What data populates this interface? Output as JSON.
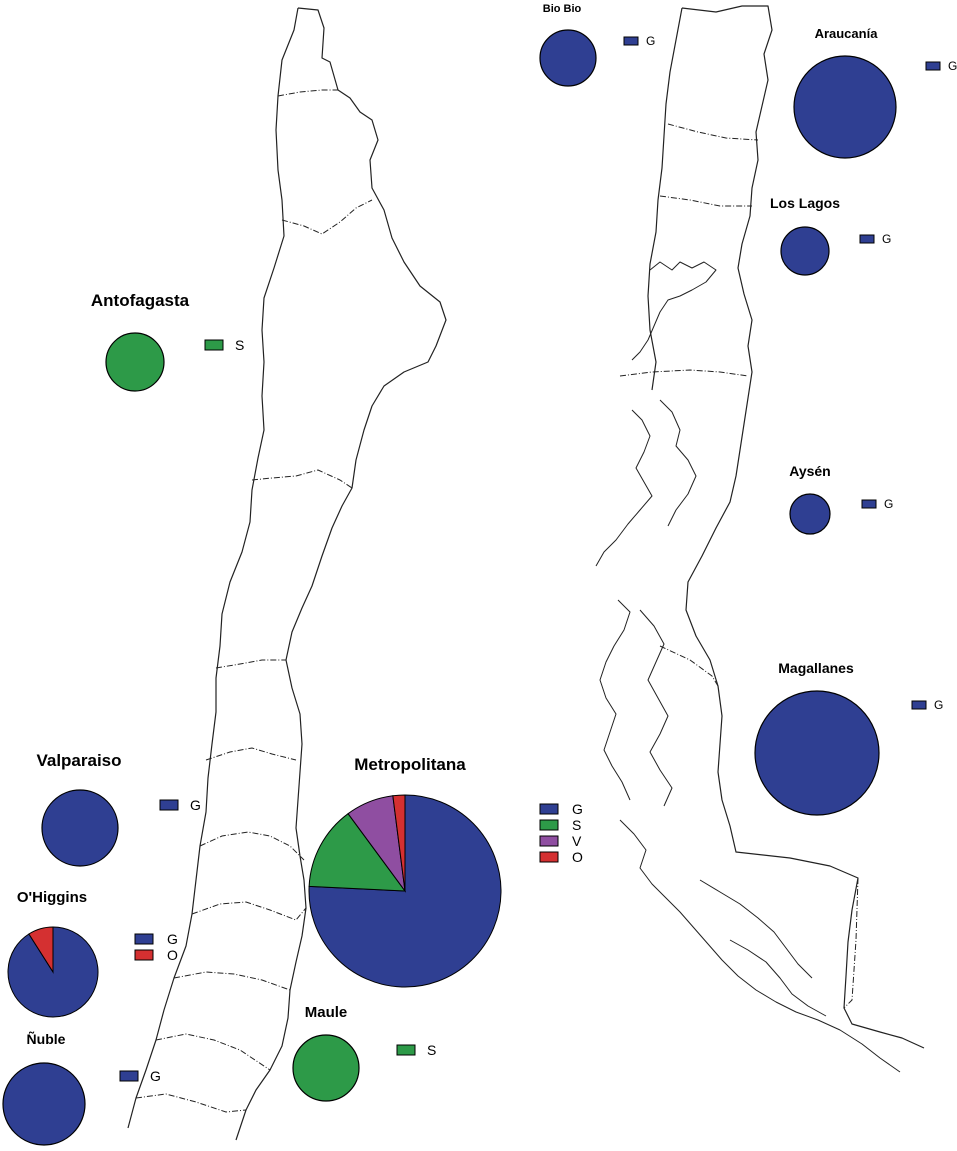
{
  "colors": {
    "G": "#2f3f92",
    "S": "#2d9a48",
    "V": "#8f4ea1",
    "O": "#d43031",
    "outline": "#000000",
    "border": "#222222"
  },
  "category_keys": [
    "G",
    "S",
    "V",
    "O"
  ],
  "regions": [
    {
      "id": "antofagasta",
      "name": "Antofagasta",
      "slices": [
        {
          "cat": "S",
          "value": 1.0
        }
      ],
      "legend": [
        "S"
      ]
    },
    {
      "id": "valparaiso",
      "name": "Valparaiso",
      "slices": [
        {
          "cat": "G",
          "value": 1.0
        }
      ],
      "legend": [
        "G"
      ]
    },
    {
      "id": "ohiggins",
      "name": "O'Higgins",
      "slices": [
        {
          "cat": "G",
          "value": 0.91
        },
        {
          "cat": "O",
          "value": 0.09
        }
      ],
      "legend": [
        "G",
        "O"
      ]
    },
    {
      "id": "nuble",
      "name": "Ñuble",
      "slices": [
        {
          "cat": "G",
          "value": 1.0
        }
      ],
      "legend": [
        "G"
      ]
    },
    {
      "id": "metropolitana",
      "name": "Metropolitana",
      "slices": [
        {
          "cat": "G",
          "value": 0.75
        },
        {
          "cat": "S",
          "value": 0.14
        },
        {
          "cat": "V",
          "value": 0.08
        },
        {
          "cat": "O",
          "value": 0.02
        }
      ],
      "legend": [
        "G",
        "S",
        "V",
        "O"
      ]
    },
    {
      "id": "maule",
      "name": "Maule",
      "slices": [
        {
          "cat": "S",
          "value": 1.0
        }
      ],
      "legend": [
        "S"
      ]
    },
    {
      "id": "biobio",
      "name": "Bio Bio",
      "slices": [
        {
          "cat": "G",
          "value": 1.0
        }
      ],
      "legend": [
        "G"
      ]
    },
    {
      "id": "araucania",
      "name": "Araucanía",
      "slices": [
        {
          "cat": "G",
          "value": 1.0
        }
      ],
      "legend": [
        "G"
      ]
    },
    {
      "id": "loslagos",
      "name": "Los Lagos",
      "slices": [
        {
          "cat": "G",
          "value": 1.0
        }
      ],
      "legend": [
        "G"
      ]
    },
    {
      "id": "aysen",
      "name": "Aysén",
      "slices": [
        {
          "cat": "G",
          "value": 1.0
        }
      ],
      "legend": [
        "G"
      ]
    },
    {
      "id": "magallanes",
      "name": "Magallanes",
      "slices": [
        {
          "cat": "G",
          "value": 1.0
        }
      ],
      "legend": [
        "G"
      ]
    }
  ]
}
